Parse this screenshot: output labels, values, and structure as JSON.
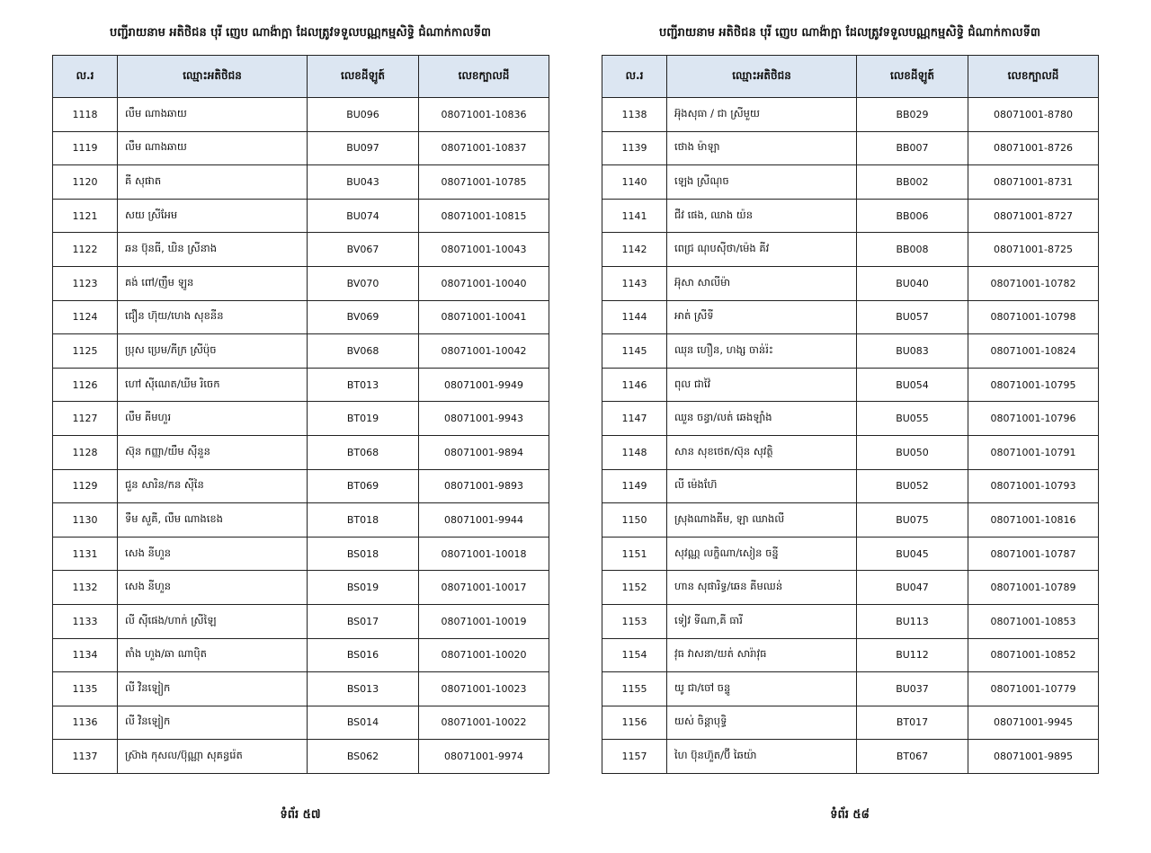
{
  "pages": [
    {
      "title": "បញ្ជីរាយនាម អតិថិជន បុរី ញេប ណាង៉ាក្អា ដែលត្រូវទទួលបណ្ណកម្មសិទ្ធិ ជំណាក់កាលទី៣",
      "headers": [
        "ល.រ",
        "ឈ្មោះអតិថិជន",
        "លេខដីឡូត៍",
        "លេខក្បាលដី"
      ],
      "rows": [
        [
          "1118",
          "លឹម ណាងឆាយ",
          "BU096",
          "08071001-10836"
        ],
        [
          "1119",
          "លឹម ណាងឆាយ",
          "BU097",
          "08071001-10837"
        ],
        [
          "1120",
          "គី សុផាត",
          "BU043",
          "08071001-10785"
        ],
        [
          "1121",
          "សយ ស្រីអែម",
          "BU074",
          "08071001-10815"
        ],
        [
          "1122",
          "ឆន ប៊ុនធី, ឃិន ស្រីនាង",
          "BV067",
          "08071001-10043"
        ],
        [
          "1123",
          "គង់ ពៅ/ញឹម ឡូន",
          "BV070",
          "08071001-10040"
        ],
        [
          "1124",
          "ជឿន ហ៊ុយ/ហេង សុខនីន",
          "BV069",
          "08071001-10041"
        ],
        [
          "1125",
          "ប្រុស ប្រេម/ភីក្រ ស្រីប៉ុច",
          "BV068",
          "08071001-10042"
        ],
        [
          "1126",
          "ហៅ ស៊ីណេត/ឃីម រិចេក",
          "BT013",
          "08071001-9949"
        ],
        [
          "1127",
          "លឹម គីមហួរ",
          "BT019",
          "08071001-9943"
        ],
        [
          "1128",
          "ស៊ុន កញ្ញា/យឹម ស៊ីនួន",
          "BT068",
          "08071001-9894"
        ],
        [
          "1129",
          "ជួន សារិន/កន ស៊ីនៃ",
          "BT069",
          "08071001-9893"
        ],
        [
          "1130",
          "ទឹម សួគី, លឹម ណាងខេង",
          "BT018",
          "08071001-9944"
        ],
        [
          "1131",
          "សេង នីហួន",
          "BS018",
          "08071001-10018"
        ],
        [
          "1132",
          "សេង នីហួន",
          "BS019",
          "08071001-10017"
        ],
        [
          "1133",
          "លី ស៊ីផេង/ហាក់ ស្រីឡៃ",
          "BS017",
          "08071001-10019"
        ],
        [
          "1134",
          "តាំង ហួង/ឆា ណាប៉ិត",
          "BS016",
          "08071001-10020"
        ],
        [
          "1135",
          "លី វិនឡៀក",
          "BS013",
          "08071001-10023"
        ],
        [
          "1136",
          "លី វិនឡៀក",
          "BS014",
          "08071001-10022"
        ],
        [
          "1137",
          "ស្រ៊ាង កុសល/ប៊ុណ្ណា សុគន្ធរ៉េត",
          "BS062",
          "08071001-9974"
        ]
      ],
      "footer": "ទំព័រ ៥៧"
    },
    {
      "title": "បញ្ជីរាយនាម អតិថិជន បុរី ញេប ណាង៉ាក្អា ដែលត្រូវទទួលបណ្ណកម្មសិទ្ធិ ជំណាក់កាលទី៣",
      "headers": [
        "ល.រ",
        "ឈ្មោះអតិថិជន",
        "លេខដីឡូត៍",
        "លេខក្បាលដី"
      ],
      "rows": [
        [
          "1138",
          "អ៊ុងសុធា / ជា ស្រីមួយ",
          "BB029",
          "08071001-8780"
        ],
        [
          "1139",
          "ថោង ម៉ាឡា",
          "BB007",
          "08071001-8726"
        ],
        [
          "1140",
          "ឡេង ស្រីណុច",
          "BB002",
          "08071001-8731"
        ],
        [
          "1141",
          "ជីវ ផេង, ឈាង យ៉ន",
          "BB006",
          "08071001-8727"
        ],
        [
          "1142",
          "ពេជ្រ ណុបស៊ីថា/ម៉េង គីវ",
          "BB008",
          "08071001-8725"
        ],
        [
          "1143",
          "អ៊ុសា សាលីម៉ា",
          "BU040",
          "08071001-10782"
        ],
        [
          "1144",
          "អាត់ ស្រីទី",
          "BU057",
          "08071001-10798"
        ],
        [
          "1145",
          "ឈុន ហឿន, ហង្ស ចាន់រ៉ះ",
          "BU083",
          "08071001-10824"
        ],
        [
          "1146",
          "ពុល ជាវ៉ៃ",
          "BU054",
          "08071001-10795"
        ],
        [
          "1147",
          "ឈួន ចន្ធា/លត់ ឆេងឡាំង",
          "BU055",
          "08071001-10796"
        ],
        [
          "1148",
          "សាន សុខថេត/ស៊ុន សុវត្ថិ",
          "BU050",
          "08071001-10791"
        ],
        [
          "1149",
          "លី ម៉េងហ៊ែ",
          "BU052",
          "08071001-10793"
        ],
        [
          "1150",
          "ស្រុងណាងគីម, ឡា ឈាងលី",
          "BU075",
          "08071001-10816"
        ],
        [
          "1151",
          "សុវណ្ណ លក្ខិណា/សៀន ចន្នី",
          "BU045",
          "08071001-10787"
        ],
        [
          "1152",
          "ហាន សុផារិទ្ធ/ឆេន គីមឈន់",
          "BU047",
          "08071001-10789"
        ],
        [
          "1153",
          "ទៀវ ទីណា,គី ធារី",
          "BU113",
          "08071001-10853"
        ],
        [
          "1154",
          "វុធ វាសនា/យត់ សារ៉ាវុធ",
          "BU112",
          "08071001-10852"
        ],
        [
          "1155",
          "យូ ជា/ចៅ ចន្ទូ",
          "BU037",
          "08071001-10779"
        ],
        [
          "1156",
          "យស់ ចិន្តាបុទ្ធិ",
          "BT017",
          "08071001-9945"
        ],
        [
          "1157",
          "ហៃ ប៊ុនហ៊ួត/ប៊ី ឆៃយ៉ា",
          "BT067",
          "08071001-9895"
        ]
      ],
      "footer": "ទំព័រ ៥៨"
    }
  ],
  "colors": {
    "header_bg": "#dce6f2",
    "border": "#222222"
  }
}
